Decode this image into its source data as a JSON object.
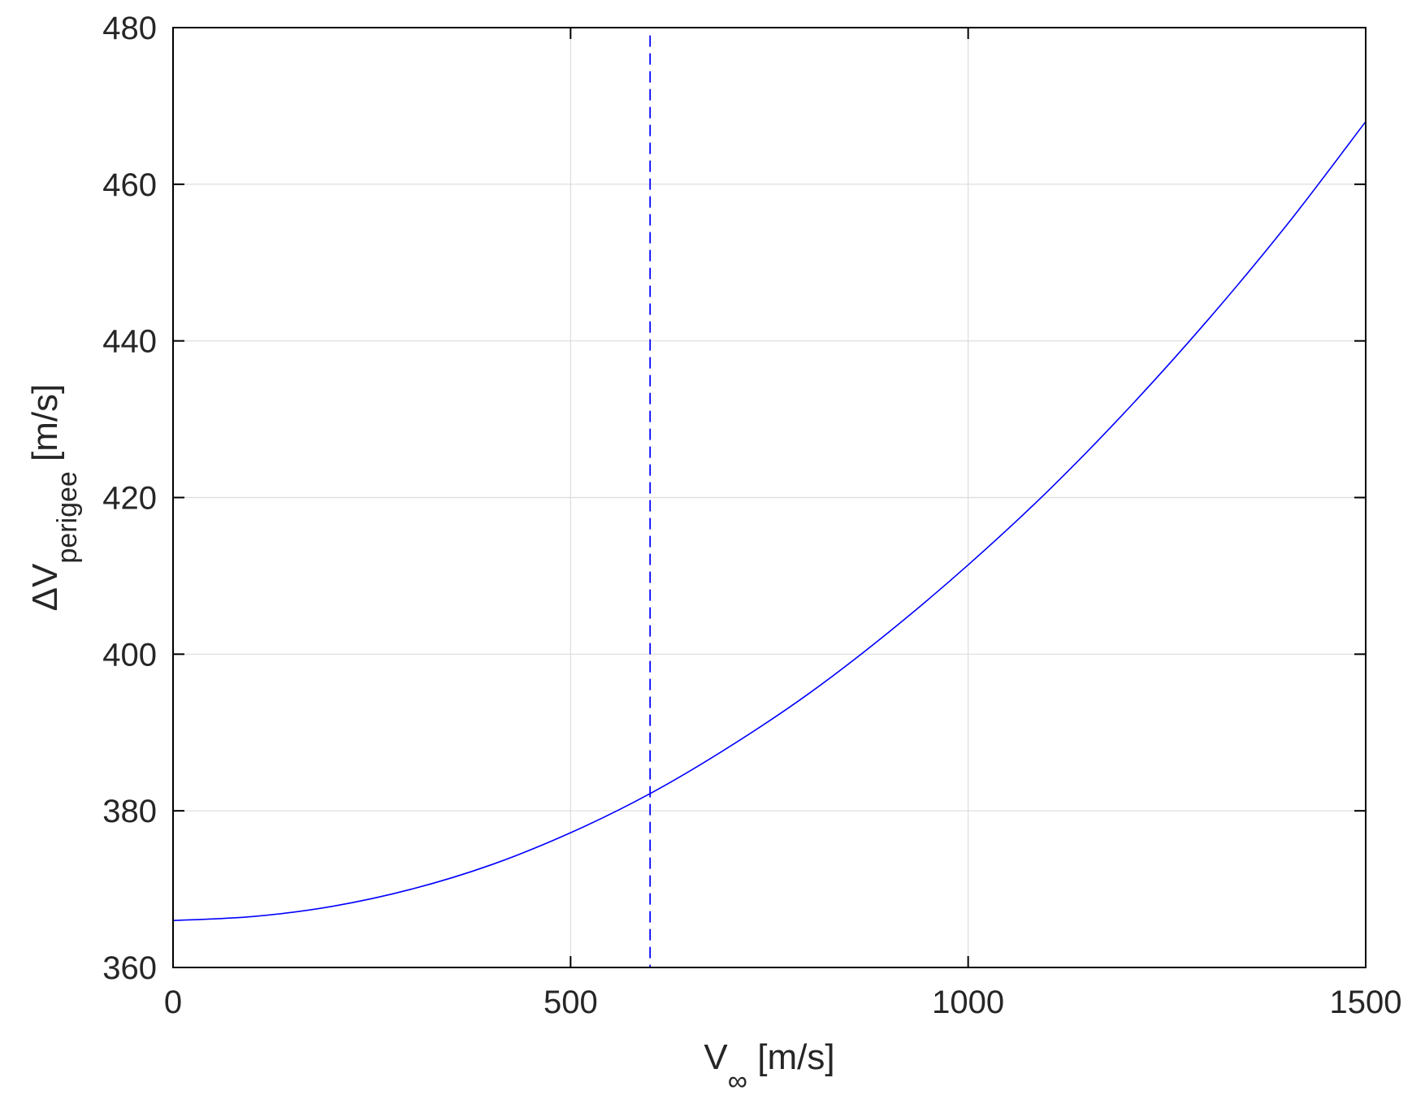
{
  "chart_data": {
    "type": "line",
    "xlabel": {
      "main": "V",
      "sub": "∞",
      "unit": " [m/s]"
    },
    "ylabel": {
      "main": "ΔV",
      "sub": "perigee",
      "unit": " [m/s]"
    },
    "xlim": [
      0,
      1500
    ],
    "ylim": [
      360,
      480
    ],
    "xticks": [
      0,
      500,
      1000,
      1500
    ],
    "xtick_labels": [
      "0",
      "500",
      "1000",
      "1500"
    ],
    "yticks": [
      360,
      380,
      400,
      420,
      440,
      460,
      480
    ],
    "ytick_labels": [
      "360",
      "380",
      "400",
      "420",
      "440",
      "460",
      "480"
    ],
    "grid": true,
    "series": [
      {
        "style": "solid",
        "color": "#0000ff",
        "x": [
          0,
          100,
          200,
          300,
          400,
          500,
          600,
          700,
          800,
          900,
          1000,
          1100,
          1200,
          1300,
          1400,
          1500
        ],
        "y": [
          366.0,
          366.5,
          367.8,
          370.0,
          373.1,
          377.2,
          382.2,
          388.2,
          395.0,
          402.8,
          411.4,
          420.8,
          431.2,
          442.5,
          454.7,
          468.0
        ]
      }
    ],
    "vlines": [
      {
        "x": 600,
        "style": "dashed",
        "color": "#0000ff",
        "y_top": 479
      }
    ]
  }
}
